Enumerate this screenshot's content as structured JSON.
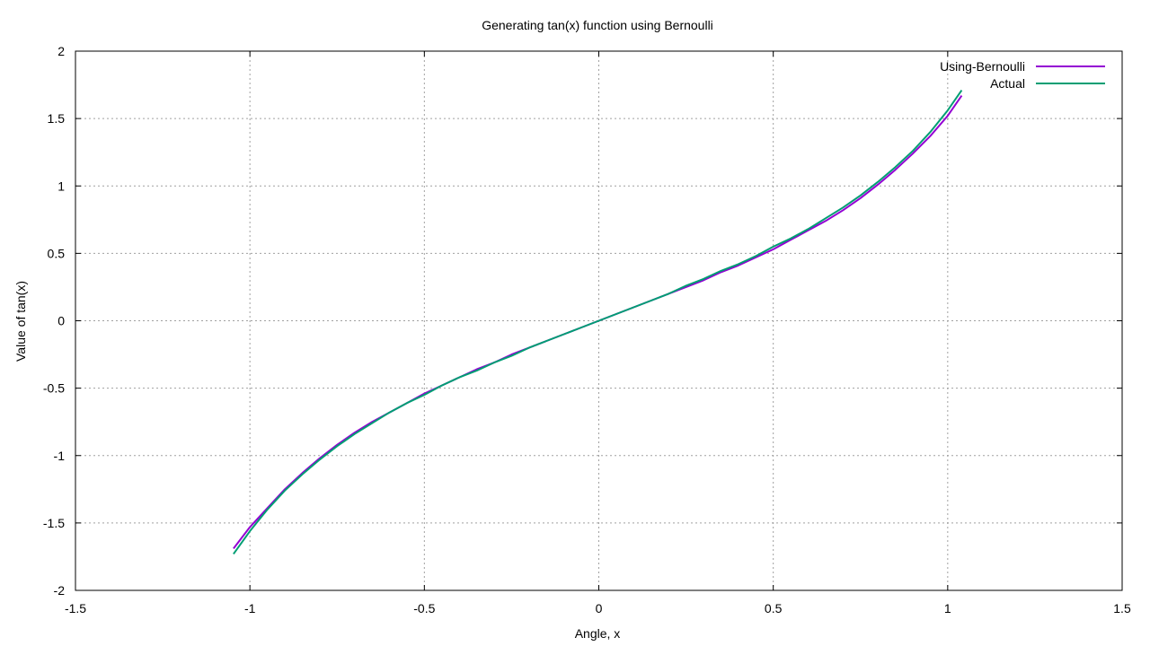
{
  "chart_data": {
    "type": "line",
    "title": "Generating tan(x) function using Bernoulli",
    "xlabel": "Angle, x",
    "ylabel": "Value of tan(x)",
    "xlim": [
      -1.5,
      1.5
    ],
    "ylim": [
      -2,
      2
    ],
    "x_ticks": [
      "-1.5",
      "-1",
      "-0.5",
      "0",
      "0.5",
      "1",
      "1.5"
    ],
    "y_ticks": [
      "-2",
      "-1.5",
      "-1",
      "-0.5",
      "0",
      "0.5",
      "1",
      "1.5",
      "2"
    ],
    "grid": true,
    "legend_position": "top-right",
    "series": [
      {
        "name": "Using-Bernoulli",
        "color": "#9400d3",
        "x": [
          -1.047,
          -1.0,
          -0.95,
          -0.9,
          -0.85,
          -0.8,
          -0.75,
          -0.7,
          -0.65,
          -0.6,
          -0.55,
          -0.5,
          -0.45,
          -0.4,
          -0.35,
          -0.3,
          -0.25,
          -0.2,
          -0.15,
          -0.1,
          -0.05,
          0.0,
          0.05,
          0.1,
          0.15,
          0.2,
          0.25,
          0.3,
          0.35,
          0.4,
          0.45,
          0.5,
          0.55,
          0.6,
          0.65,
          0.7,
          0.75,
          0.8,
          0.85,
          0.9,
          0.95,
          1.0,
          1.04
        ],
        "y": [
          -1.69,
          -1.53,
          -1.39,
          -1.25,
          -1.13,
          -1.02,
          -0.92,
          -0.83,
          -0.75,
          -0.68,
          -0.61,
          -0.54,
          -0.48,
          -0.42,
          -0.36,
          -0.31,
          -0.25,
          -0.2,
          -0.15,
          -0.1,
          -0.05,
          0.0,
          0.05,
          0.1,
          0.15,
          0.2,
          0.25,
          0.3,
          0.36,
          0.41,
          0.47,
          0.53,
          0.6,
          0.67,
          0.74,
          0.82,
          0.91,
          1.01,
          1.12,
          1.24,
          1.37,
          1.52,
          1.67
        ]
      },
      {
        "name": "Actual",
        "color": "#009e73",
        "x": [
          -1.047,
          -1.0,
          -0.95,
          -0.9,
          -0.85,
          -0.8,
          -0.75,
          -0.7,
          -0.65,
          -0.6,
          -0.55,
          -0.5,
          -0.45,
          -0.4,
          -0.35,
          -0.3,
          -0.25,
          -0.2,
          -0.15,
          -0.1,
          -0.05,
          0.0,
          0.05,
          0.1,
          0.15,
          0.2,
          0.25,
          0.3,
          0.35,
          0.4,
          0.45,
          0.5,
          0.55,
          0.6,
          0.65,
          0.7,
          0.75,
          0.8,
          0.85,
          0.9,
          0.95,
          1.0,
          1.04
        ],
        "y": [
          -1.73,
          -1.56,
          -1.4,
          -1.26,
          -1.14,
          -1.03,
          -0.93,
          -0.84,
          -0.76,
          -0.68,
          -0.61,
          -0.55,
          -0.48,
          -0.42,
          -0.37,
          -0.31,
          -0.26,
          -0.2,
          -0.15,
          -0.1,
          -0.05,
          0.0,
          0.05,
          0.1,
          0.15,
          0.2,
          0.26,
          0.31,
          0.37,
          0.42,
          0.48,
          0.55,
          0.61,
          0.68,
          0.76,
          0.84,
          0.93,
          1.03,
          1.14,
          1.26,
          1.4,
          1.56,
          1.71
        ]
      }
    ]
  }
}
